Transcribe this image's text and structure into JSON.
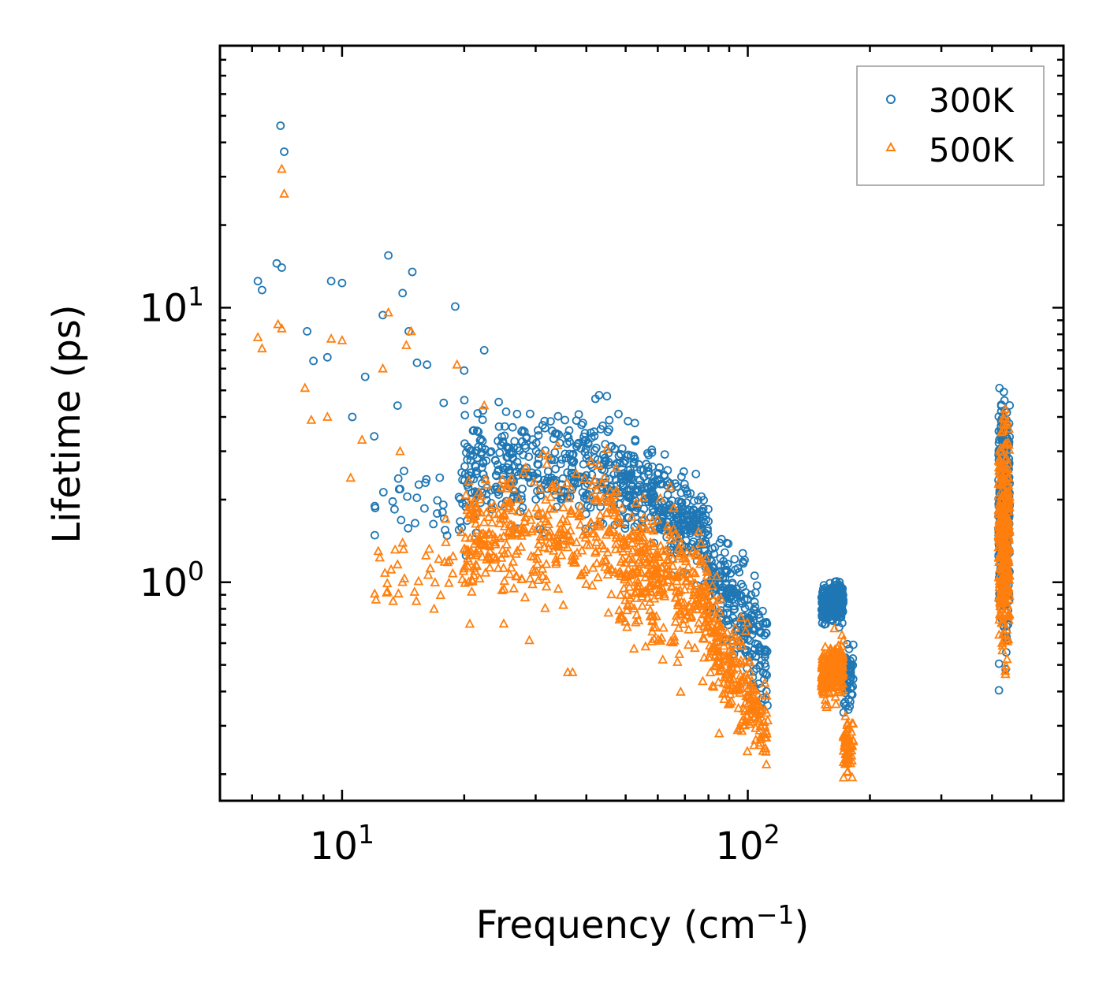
{
  "chart_data": {
    "type": "scatter",
    "xscale": "log",
    "yscale": "log",
    "xlabel": "Frequency (cm",
    "xlabel_sup": "−1",
    "xlabel_end": ")",
    "ylabel": "Lifetime (ps)",
    "xlim": [
      5,
      600
    ],
    "ylim": [
      0.16,
      90
    ],
    "x_major_ticks": [
      {
        "base": "10",
        "exp": "1",
        "value": 10
      },
      {
        "base": "10",
        "exp": "2",
        "value": 100
      }
    ],
    "y_major_ticks": [
      {
        "base": "10",
        "exp": "0",
        "value": 1
      },
      {
        "base": "10",
        "exp": "1",
        "value": 10
      }
    ],
    "legend_position": "top-right",
    "series": [
      {
        "name": "300K",
        "color": "#1f77b4",
        "marker": "circle",
        "outliers": [
          [
            6.2,
            12.5
          ],
          [
            6.35,
            11.6
          ],
          [
            6.9,
            14.5
          ],
          [
            7.1,
            14.0
          ],
          [
            7.05,
            46
          ],
          [
            7.2,
            37
          ],
          [
            8.2,
            8.2
          ],
          [
            8.5,
            6.4
          ],
          [
            9.2,
            6.6
          ],
          [
            9.4,
            12.5
          ],
          [
            10.0,
            12.3
          ],
          [
            10.6,
            4.0
          ],
          [
            11.4,
            5.6
          ],
          [
            12.0,
            3.4
          ],
          [
            12.6,
            9.4
          ],
          [
            13.0,
            15.5
          ],
          [
            13.7,
            4.4
          ],
          [
            14.1,
            11.3
          ],
          [
            14.6,
            8.2
          ],
          [
            14.9,
            13.5
          ],
          [
            15.3,
            6.3
          ],
          [
            16.2,
            6.2
          ],
          [
            17.8,
            4.5
          ],
          [
            19.0,
            10.1
          ],
          [
            20.0,
            5.9
          ],
          [
            22.4,
            7.0
          ],
          [
            27.0,
            4.1
          ],
          [
            43.0,
            4.8
          ],
          [
            48.0,
            4.1
          ]
        ],
        "clusters": [
          {
            "x_range": [
              12,
              22
            ],
            "y_center": [
              2.0,
              2.1
            ],
            "spread": 1.3,
            "count": 45
          },
          {
            "x_range": [
              20,
              48
            ],
            "y_center": [
              2.6,
              2.6
            ],
            "spread": 1.35,
            "count": 360
          },
          {
            "x_range": [
              48,
              80
            ],
            "y_center": [
              2.3,
              1.5
            ],
            "spread": 1.3,
            "count": 340
          },
          {
            "x_range": [
              78,
              112
            ],
            "y_center": [
              1.2,
              0.55
            ],
            "spread": 1.35,
            "count": 240
          },
          {
            "x_range": [
              152,
              172
            ],
            "y_center": [
              0.82,
              0.85
            ],
            "spread": 1.12,
            "count": 260
          },
          {
            "x_range": [
              172,
              182
            ],
            "y_center": [
              0.45,
              0.45
            ],
            "spread": 1.2,
            "count": 60
          },
          {
            "x_range": [
              415,
              442
            ],
            "y_center": [
              1.8,
              1.8
            ],
            "spread": 1.9,
            "count": 320
          }
        ]
      },
      {
        "name": "500K",
        "color": "#ff7f0e",
        "marker": "triangle",
        "outliers": [
          [
            6.2,
            7.8
          ],
          [
            6.35,
            7.1
          ],
          [
            6.95,
            8.7
          ],
          [
            7.1,
            8.4
          ],
          [
            7.1,
            32
          ],
          [
            7.2,
            26
          ],
          [
            8.1,
            5.1
          ],
          [
            8.4,
            3.9
          ],
          [
            9.2,
            4.0
          ],
          [
            9.4,
            7.7
          ],
          [
            10.0,
            7.6
          ],
          [
            10.5,
            2.4
          ],
          [
            11.2,
            3.3
          ],
          [
            12.6,
            6.0
          ],
          [
            13.0,
            9.6
          ],
          [
            13.9,
            3.0
          ],
          [
            14.4,
            7.3
          ],
          [
            14.8,
            8.2
          ],
          [
            19.2,
            6.2
          ],
          [
            22.4,
            4.4
          ],
          [
            37.0,
            0.47
          ],
          [
            36.0,
            0.47
          ],
          [
            18.0,
            1.7
          ]
        ],
        "clusters": [
          {
            "x_range": [
              12,
              22
            ],
            "y_center": [
              1.1,
              1.2
            ],
            "spread": 1.25,
            "count": 45
          },
          {
            "x_range": [
              20,
              48
            ],
            "y_center": [
              1.4,
              1.5
            ],
            "spread": 1.5,
            "count": 360
          },
          {
            "x_range": [
              48,
              80
            ],
            "y_center": [
              1.2,
              0.85
            ],
            "spread": 1.45,
            "count": 340
          },
          {
            "x_range": [
              78,
              112
            ],
            "y_center": [
              0.7,
              0.3
            ],
            "spread": 1.35,
            "count": 240
          },
          {
            "x_range": [
              152,
              172
            ],
            "y_center": [
              0.45,
              0.5
            ],
            "spread": 1.15,
            "count": 260
          },
          {
            "x_range": [
              172,
              182
            ],
            "y_center": [
              0.25,
              0.25
            ],
            "spread": 1.18,
            "count": 60
          },
          {
            "x_range": [
              415,
              442
            ],
            "y_center": [
              1.4,
              1.4
            ],
            "spread": 1.9,
            "count": 320
          }
        ]
      }
    ]
  }
}
